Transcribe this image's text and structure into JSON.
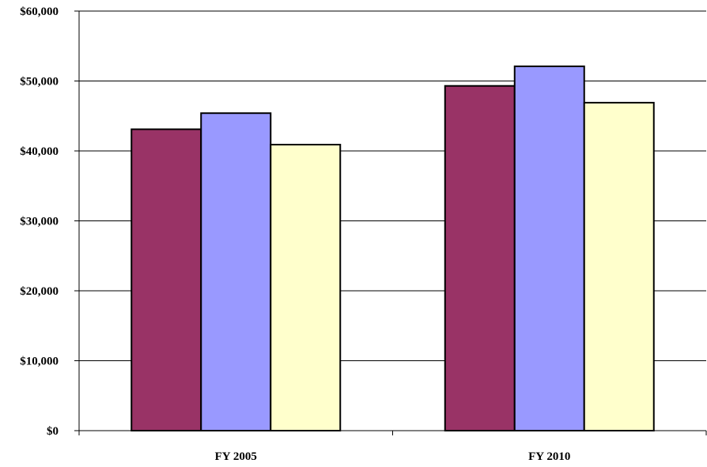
{
  "chart_data": {
    "type": "bar",
    "categories": [
      "FY 2005",
      "FY 2010"
    ],
    "series": [
      {
        "values": [
          43100,
          49300
        ],
        "color": "#993366"
      },
      {
        "values": [
          45400,
          52100
        ],
        "color": "#9999ff"
      },
      {
        "values": [
          40900,
          46900
        ],
        "color": "#ffffcc"
      }
    ],
    "yticks": [
      "$0",
      "$10,000",
      "$20,000",
      "$30,000",
      "$40,000",
      "$50,000",
      "$60,000"
    ],
    "ylim": [
      0,
      60000
    ],
    "grid": true,
    "title": "",
    "xlabel": "",
    "ylabel": ""
  }
}
